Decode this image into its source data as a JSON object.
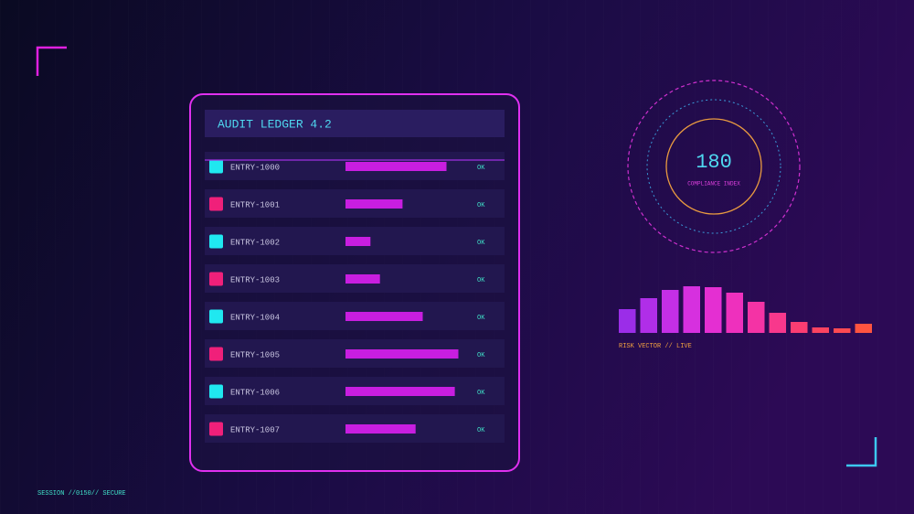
{
  "ledger": {
    "title": "AUDIT LEDGER 4.2",
    "rows": [
      {
        "id": "ENTRY-1000",
        "value": 85,
        "status": "OK"
      },
      {
        "id": "ENTRY-1001",
        "value": 48,
        "status": "OK"
      },
      {
        "id": "ENTRY-1002",
        "value": 21,
        "status": "OK"
      },
      {
        "id": "ENTRY-1003",
        "value": 29,
        "status": "OK"
      },
      {
        "id": "ENTRY-1004",
        "value": 65,
        "status": "OK"
      },
      {
        "id": "ENTRY-1005",
        "value": 95,
        "status": "OK"
      },
      {
        "id": "ENTRY-1006",
        "value": 92,
        "status": "OK"
      },
      {
        "id": "ENTRY-1007",
        "value": 59,
        "status": "OK"
      }
    ]
  },
  "gauge": {
    "value": 180,
    "label": "COMPLIANCE INDEX"
  },
  "risk": {
    "label": "RISK VECTOR // LIVE",
    "values": [
      26,
      38,
      47,
      51,
      50,
      44,
      34,
      22,
      12,
      6,
      5,
      10
    ],
    "colors": [
      "#9b2de8",
      "#b02ee8",
      "#c42fe6",
      "#d630df",
      "#e42fd2",
      "#ee30bd",
      "#f433a5",
      "#f8388c",
      "#fb3d72",
      "#fc4360",
      "#fd4a52",
      "#fe5440"
    ]
  },
  "footer": {
    "session": "SESSION //0150// SECURE"
  }
}
